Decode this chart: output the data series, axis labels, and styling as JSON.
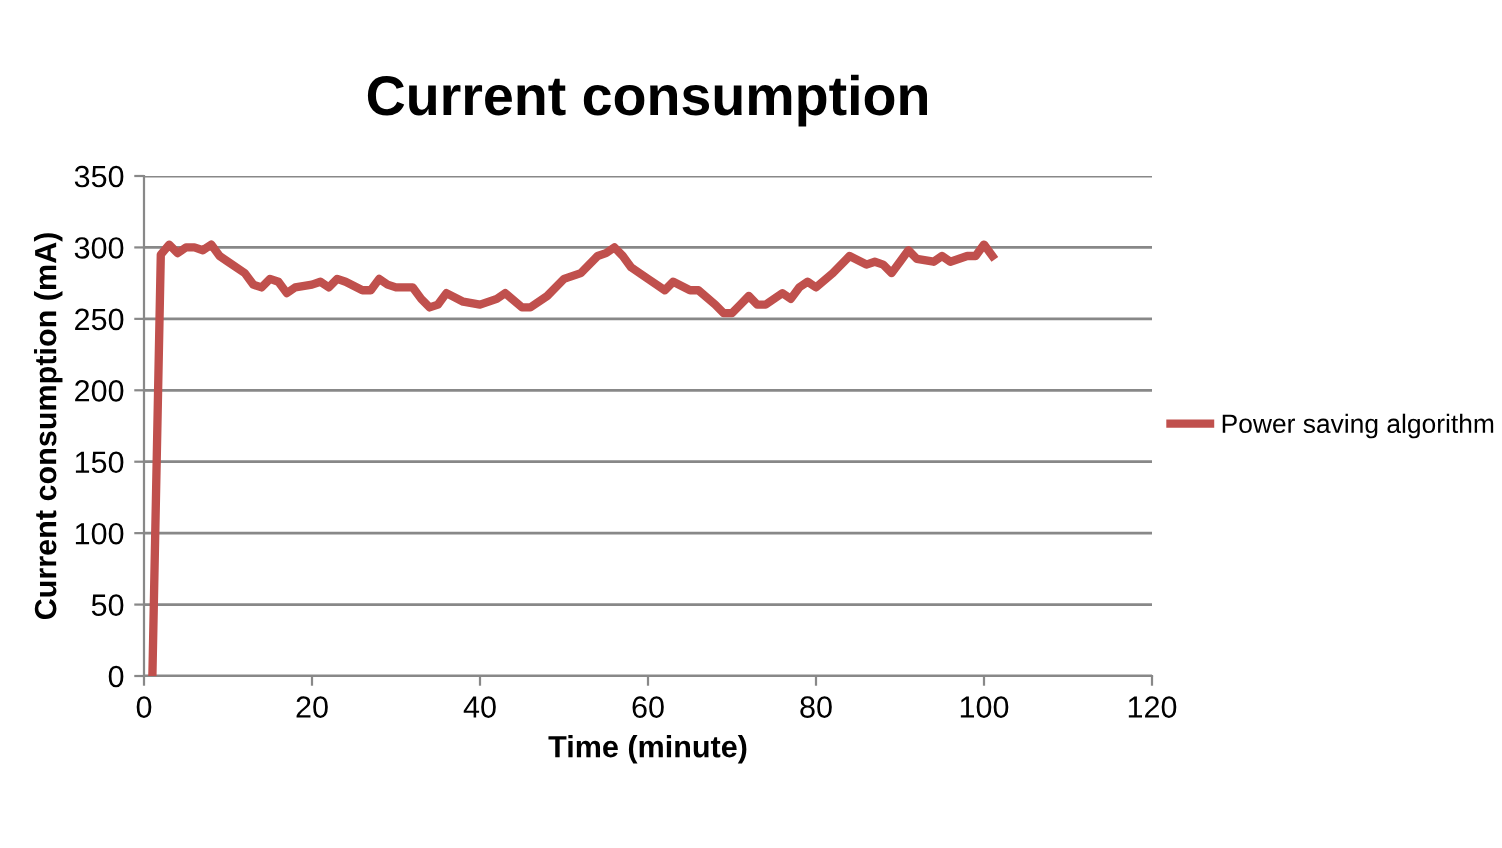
{
  "chart_data": {
    "type": "line",
    "title": "Current consumption",
    "xlabel": "Time (minute)",
    "ylabel": "Current consumption (mA)",
    "xlim": [
      0,
      120
    ],
    "xticks": [
      0,
      20,
      40,
      60,
      80,
      100,
      120
    ],
    "ylim": [
      0,
      350
    ],
    "yticks": [
      0,
      50,
      100,
      150,
      200,
      250,
      300,
      350
    ],
    "grid": "y",
    "legend": "right",
    "marker": "none",
    "line_style": "solid",
    "series": [
      {
        "name": "Power saving algorithm",
        "color": "#c0504d",
        "x": [
          1,
          2,
          3,
          4,
          5,
          6,
          7,
          8,
          9,
          10,
          12,
          13,
          14,
          15,
          16,
          17,
          18,
          20,
          21,
          22,
          23,
          24,
          26,
          27,
          28,
          29,
          30,
          32,
          33,
          34,
          35,
          36,
          38,
          40,
          42,
          43,
          45,
          46,
          48,
          50,
          52,
          54,
          55,
          56,
          57,
          58,
          60,
          62,
          63,
          65,
          66,
          68,
          69,
          70,
          71,
          72,
          73,
          74,
          76,
          77,
          78,
          79,
          80,
          82,
          84,
          86,
          87,
          88,
          89,
          90,
          91,
          92,
          94,
          95,
          96,
          98,
          99,
          100,
          101
        ],
        "values": [
          0,
          295,
          302,
          296,
          300,
          300,
          298,
          302,
          294,
          290,
          282,
          274,
          272,
          278,
          276,
          268,
          272,
          274,
          276,
          272,
          278,
          276,
          270,
          270,
          278,
          274,
          272,
          272,
          264,
          258,
          260,
          268,
          262,
          260,
          264,
          268,
          258,
          258,
          266,
          278,
          282,
          294,
          296,
          300,
          294,
          286,
          278,
          270,
          276,
          270,
          270,
          260,
          254,
          254,
          260,
          266,
          260,
          260,
          268,
          264,
          272,
          276,
          272,
          282,
          294,
          288,
          290,
          288,
          282,
          290,
          298,
          292,
          290,
          294,
          290,
          294,
          294,
          302,
          294
        ]
      }
    ]
  }
}
